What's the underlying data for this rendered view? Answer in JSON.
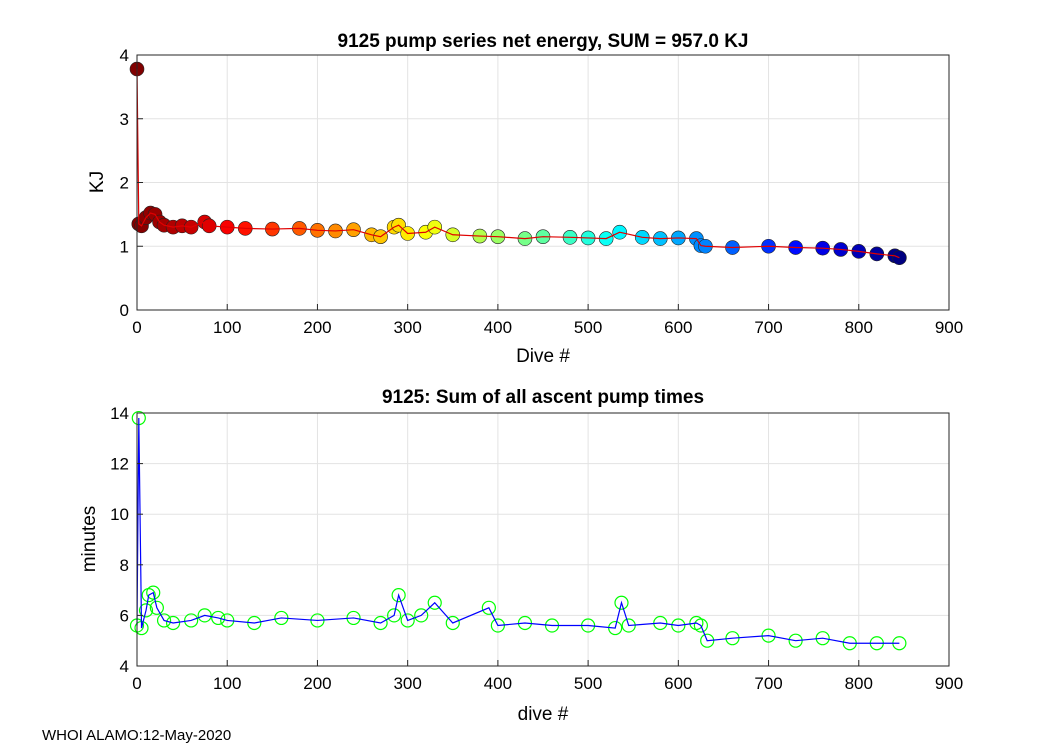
{
  "footer": "WHOI ALAMO:12-May-2020",
  "chart_data": [
    {
      "type": "scatter",
      "title": "9125 pump series net energy, SUM = 957.0 KJ",
      "xlabel": "Dive #",
      "ylabel": "KJ",
      "xlim": [
        0,
        900
      ],
      "ylim": [
        0,
        4
      ],
      "xticks": [
        0,
        100,
        200,
        300,
        400,
        500,
        600,
        700,
        800,
        900
      ],
      "yticks": [
        0,
        1,
        2,
        3,
        4
      ],
      "grid": true,
      "marker_colormap": "jet (dark red to dark blue by dive #)",
      "line_color": "#e00000",
      "series": [
        {
          "name": "net energy",
          "x": [
            0,
            2,
            5,
            10,
            15,
            20,
            25,
            30,
            40,
            50,
            60,
            75,
            80,
            100,
            120,
            150,
            180,
            200,
            220,
            240,
            260,
            270,
            285,
            290,
            300,
            320,
            330,
            350,
            380,
            400,
            430,
            450,
            480,
            500,
            520,
            535,
            560,
            580,
            600,
            620,
            625,
            630,
            660,
            700,
            730,
            760,
            780,
            800,
            820,
            840,
            845
          ],
          "y": [
            3.78,
            1.35,
            1.32,
            1.45,
            1.52,
            1.5,
            1.38,
            1.33,
            1.3,
            1.32,
            1.3,
            1.38,
            1.32,
            1.3,
            1.28,
            1.27,
            1.28,
            1.25,
            1.24,
            1.26,
            1.18,
            1.15,
            1.3,
            1.33,
            1.2,
            1.22,
            1.3,
            1.18,
            1.16,
            1.15,
            1.12,
            1.15,
            1.14,
            1.13,
            1.12,
            1.22,
            1.14,
            1.12,
            1.13,
            1.12,
            1.01,
            1.0,
            0.98,
            1.0,
            0.98,
            0.97,
            0.95,
            0.92,
            0.88,
            0.85,
            0.82
          ]
        }
      ]
    },
    {
      "type": "line",
      "title": "9125: Sum of all ascent pump times",
      "xlabel": "dive #",
      "ylabel": "minutes",
      "xlim": [
        0,
        900
      ],
      "ylim": [
        4,
        14
      ],
      "xticks": [
        0,
        100,
        200,
        300,
        400,
        500,
        600,
        700,
        800,
        900
      ],
      "yticks": [
        4,
        6,
        8,
        10,
        12,
        14
      ],
      "grid": true,
      "line_color": "#0000ff",
      "marker_color": "#00ff00",
      "series": [
        {
          "name": "ascent pump time",
          "x": [
            0,
            2,
            5,
            10,
            13,
            18,
            22,
            30,
            40,
            60,
            75,
            90,
            100,
            130,
            160,
            200,
            240,
            270,
            285,
            290,
            300,
            315,
            330,
            350,
            390,
            400,
            430,
            460,
            500,
            530,
            537,
            545,
            580,
            600,
            620,
            625,
            632,
            660,
            700,
            730,
            760,
            790,
            820,
            845
          ],
          "y": [
            5.6,
            13.8,
            5.5,
            6.2,
            6.8,
            6.9,
            6.3,
            5.8,
            5.7,
            5.8,
            6.0,
            5.9,
            5.8,
            5.7,
            5.9,
            5.8,
            5.9,
            5.7,
            6.0,
            6.8,
            5.8,
            6.0,
            6.5,
            5.7,
            6.3,
            5.6,
            5.7,
            5.6,
            5.6,
            5.5,
            6.5,
            5.6,
            5.7,
            5.6,
            5.7,
            5.6,
            5.0,
            5.1,
            5.2,
            5.0,
            5.1,
            4.9,
            4.9,
            4.9
          ]
        }
      ]
    }
  ]
}
